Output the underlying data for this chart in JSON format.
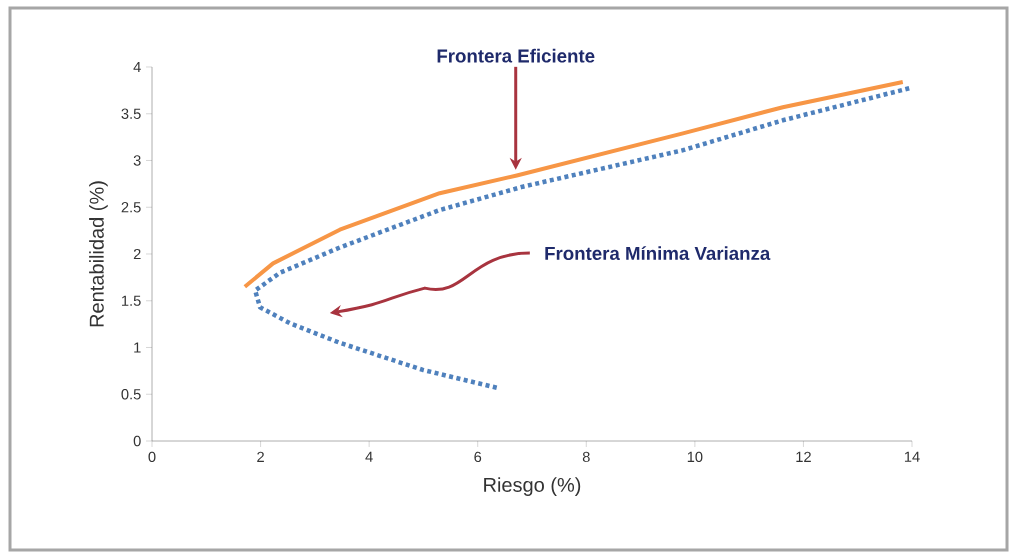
{
  "chart_data": {
    "type": "line",
    "xlabel": "Riesgo (%)",
    "ylabel": "Rentabilidad (%)",
    "xlim": [
      0,
      14
    ],
    "ylim": [
      0,
      4
    ],
    "xticks": [
      0,
      2,
      4,
      6,
      8,
      10,
      12,
      14
    ],
    "yticks": [
      0,
      0.5,
      1,
      1.5,
      2,
      2.5,
      3,
      3.5,
      4
    ],
    "grid": false,
    "marker": "none",
    "series": [
      {
        "color": "#4f81bd",
        "line_style": "dotted",
        "x": [
          6.35,
          4.99,
          3.46,
          2.54,
          1.99,
          1.9,
          2.36,
          3.46,
          5.3,
          6.83,
          9.78,
          11.62,
          14.0
        ],
        "values": [
          0.57,
          0.76,
          1.05,
          1.26,
          1.43,
          1.61,
          1.8,
          2.07,
          2.47,
          2.72,
          3.11,
          3.43,
          3.78
        ]
      },
      {
        "color": "#f79646",
        "line_style": "solid",
        "x": [
          1.71,
          2.23,
          3.46,
          5.3,
          6.72,
          9.78,
          11.62,
          13.83
        ],
        "values": [
          1.65,
          1.9,
          2.26,
          2.65,
          2.84,
          3.29,
          3.57,
          3.84
        ]
      }
    ],
    "annotations": [
      {
        "text": "Frontera Eficiente",
        "x": 6.7,
        "y": 2.9
      },
      "Frontera Mínima Varianza"
    ]
  }
}
